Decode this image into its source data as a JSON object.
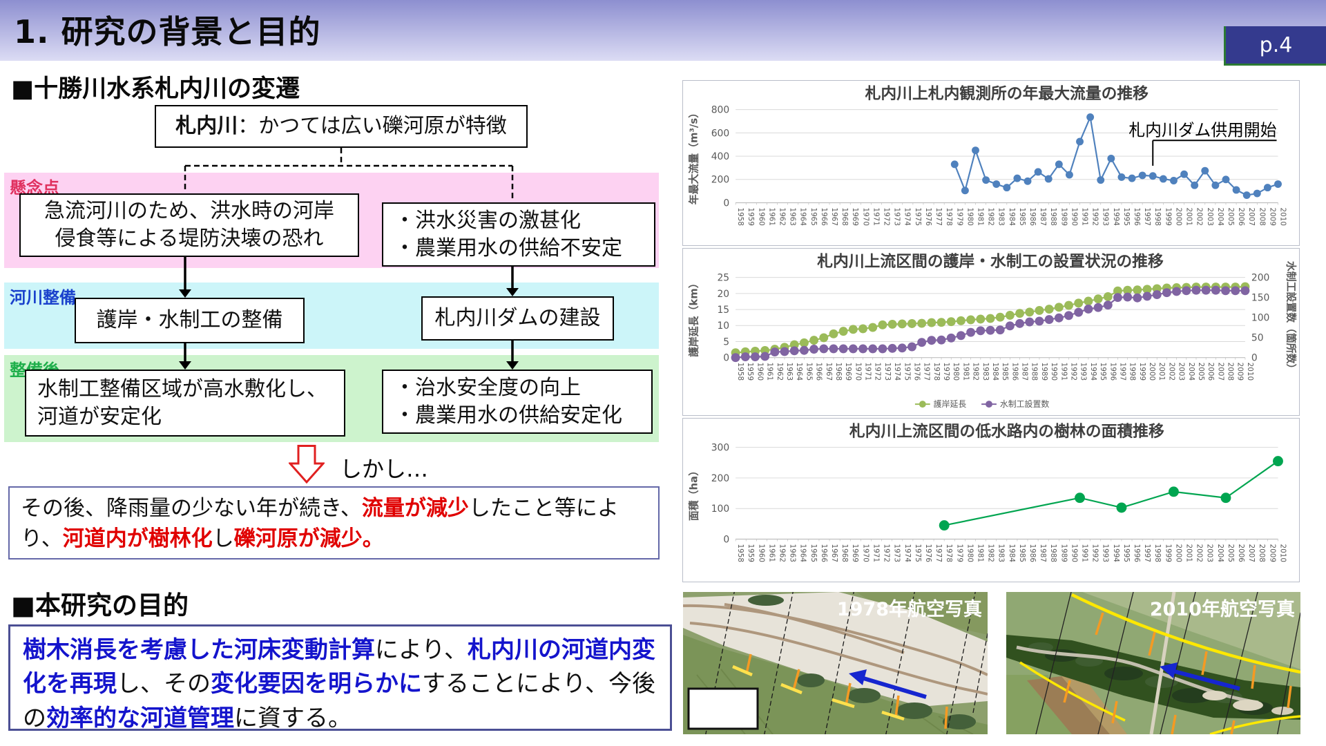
{
  "page": {
    "title": "1. 研究の背景と目的",
    "page_badge": "p.4"
  },
  "sections": {
    "history_heading": "■十勝川水系札内川の変遷",
    "purpose_heading": "■本研究の目的"
  },
  "flowchart": {
    "top_box_segments": [
      {
        "t": "札内川",
        "c": "k"
      },
      {
        "t": "：かつては広い礫河原が特徴"
      }
    ],
    "band_concern_label": "懸念点",
    "band_improvement_label": "河川整備",
    "band_after_label": "整備後",
    "concern_left": "急流河川のため、洪水時の河岸\n侵食等による堤防決壊の恐れ",
    "concern_right": "・洪水災害の激甚化\n・農業用水の供給不安定",
    "improvement_left": "護岸・水制工の整備",
    "improvement_right": "札内川ダムの建設",
    "after_left": "水制工整備区域が高水敷化し、\n河道が安定化",
    "after_right": "・治水安全度の向上\n・農業用水の供給安定化",
    "however": "しかし…"
  },
  "summary_segments": [
    {
      "t": "その後、降雨量の少ない年が続き、"
    },
    {
      "t": "流量が減少",
      "c": "r"
    },
    {
      "t": "したこと等により、"
    },
    {
      "t": "河道内が樹林化",
      "c": "r"
    },
    {
      "t": "し"
    },
    {
      "t": "礫河原が減少。",
      "c": "r"
    }
  ],
  "purpose_segments": [
    {
      "t": "樹木消長を考慮した河床変動計算",
      "c": "b"
    },
    {
      "t": "により、"
    },
    {
      "t": "札内川の河道内変化を再現",
      "c": "b"
    },
    {
      "t": "し、その"
    },
    {
      "t": "変化要因を明らかに",
      "c": "b"
    },
    {
      "t": "する"
    },
    {
      "t": "ことにより、今後の"
    },
    {
      "t": "効率的な河道管理",
      "c": "b"
    },
    {
      "t": "に資する。"
    }
  ],
  "chart_data": [
    {
      "type": "line",
      "title": "札内川上札内観測所の年最大流量の推移",
      "ylabel": "年最大流量（m³/s）",
      "ylim": [
        0,
        800
      ],
      "yticks": [
        0,
        200,
        400,
        600,
        800
      ],
      "x_range": [
        1958,
        2010
      ],
      "grid": true,
      "marker": 5.5,
      "series": [
        {
          "name": "年最大流量",
          "color": "#4f81bd",
          "points": [
            [
              1979,
              330
            ],
            [
              1980,
              105
            ],
            [
              1981,
              450
            ],
            [
              1982,
              195
            ],
            [
              1983,
              160
            ],
            [
              1984,
              130
            ],
            [
              1985,
              210
            ],
            [
              1986,
              185
            ],
            [
              1987,
              265
            ],
            [
              1988,
              205
            ],
            [
              1989,
              330
            ],
            [
              1990,
              240
            ],
            [
              1991,
              525
            ],
            [
              1992,
              735
            ],
            [
              1993,
              195
            ],
            [
              1994,
              380
            ],
            [
              1995,
              220
            ],
            [
              1996,
              210
            ],
            [
              1997,
              235
            ],
            [
              1998,
              230
            ],
            [
              1999,
              205
            ],
            [
              2000,
              190
            ],
            [
              2001,
              245
            ],
            [
              2002,
              150
            ],
            [
              2003,
              275
            ],
            [
              2004,
              150
            ],
            [
              2005,
              200
            ],
            [
              2006,
              110
            ],
            [
              2007,
              65
            ],
            [
              2008,
              80
            ],
            [
              2009,
              130
            ],
            [
              2010,
              160
            ]
          ]
        }
      ],
      "annotation": {
        "text": "札内川ダム供用開始",
        "year": 1998
      }
    },
    {
      "type": "line",
      "title": "札内川上流区間の護岸・水制工の設置状況の推移",
      "ylabel": "護岸延長（km）",
      "y2label": "水制工設置数（箇所数）",
      "ylim": [
        0,
        25
      ],
      "yticks": [
        0,
        5,
        10,
        15,
        20,
        25
      ],
      "y2lim": [
        0,
        200
      ],
      "y2ticks": [
        0,
        50,
        100,
        150,
        200
      ],
      "x_range": [
        1958,
        2010
      ],
      "grid": true,
      "marker": 6.5,
      "legend": [
        "護岸延長",
        "水制工設置数"
      ],
      "legend_position": "bottom",
      "series": [
        {
          "name": "護岸延長",
          "color": "#9bbb59",
          "axis": "left",
          "values": [
            1.5,
            1.8,
            2,
            2.2,
            2.6,
            3.2,
            4,
            4.6,
            5.4,
            6.2,
            7.4,
            8.2,
            8.8,
            9,
            9.4,
            10.2,
            10.4,
            10.5,
            10.6,
            10.7,
            10.9,
            11,
            11.2,
            11.5,
            11.8,
            12,
            12.2,
            12.6,
            13.2,
            13.8,
            14.2,
            14.7,
            15.1,
            15.7,
            16.3,
            17,
            17.6,
            18.3,
            19,
            20.8,
            21,
            21.1,
            21.3,
            21.5,
            21.7,
            21.8,
            21.9,
            22,
            22,
            22,
            22,
            22,
            22.1
          ]
        },
        {
          "name": "水制工設置数",
          "color": "#8064a2",
          "axis": "right",
          "values": [
            0,
            2,
            2,
            3,
            14,
            15,
            17,
            18,
            21,
            22,
            22,
            22,
            22,
            22,
            22,
            22,
            23,
            24,
            27,
            38,
            43,
            44,
            49,
            55,
            63,
            67,
            68,
            69,
            79,
            85,
            89,
            91,
            95,
            99,
            105,
            113,
            121,
            125,
            131,
            150,
            151,
            149,
            153,
            157,
            162,
            165,
            167,
            168,
            168,
            168,
            167,
            167,
            167
          ]
        }
      ]
    },
    {
      "type": "line",
      "title": "札内川上流区間の低水路内の樹林の面積推移",
      "ylabel": "面積（ha）",
      "ylim": [
        0,
        300
      ],
      "yticks": [
        0,
        100,
        200,
        300
      ],
      "x_range": [
        1958,
        2010
      ],
      "grid": true,
      "marker": 7.5,
      "series": [
        {
          "name": "樹林面積",
          "color": "#00a550",
          "points": [
            [
              1978,
              45
            ],
            [
              1991,
              135
            ],
            [
              1995,
              103
            ],
            [
              2000,
              155
            ],
            [
              2005,
              135
            ],
            [
              2010,
              255
            ]
          ]
        }
      ]
    }
  ],
  "photos": {
    "left_label": "1978年航空写真",
    "right_label": "2010年航空写真"
  },
  "colors": {
    "badge_navy": "#343a8e",
    "band_pink": "#fdd2f2",
    "band_cyan": "#ccf5f9",
    "band_green": "#cdf3cd",
    "label_red": "#e0315f",
    "label_blue": "#1a41cc",
    "label_green": "#1faf4b",
    "chart_blue": "#4f81bd",
    "chart_olive": "#9bbb59",
    "chart_purple": "#8064a2",
    "chart_green": "#00a550",
    "text_red": "#e00000",
    "text_blue": "#1414cc"
  }
}
